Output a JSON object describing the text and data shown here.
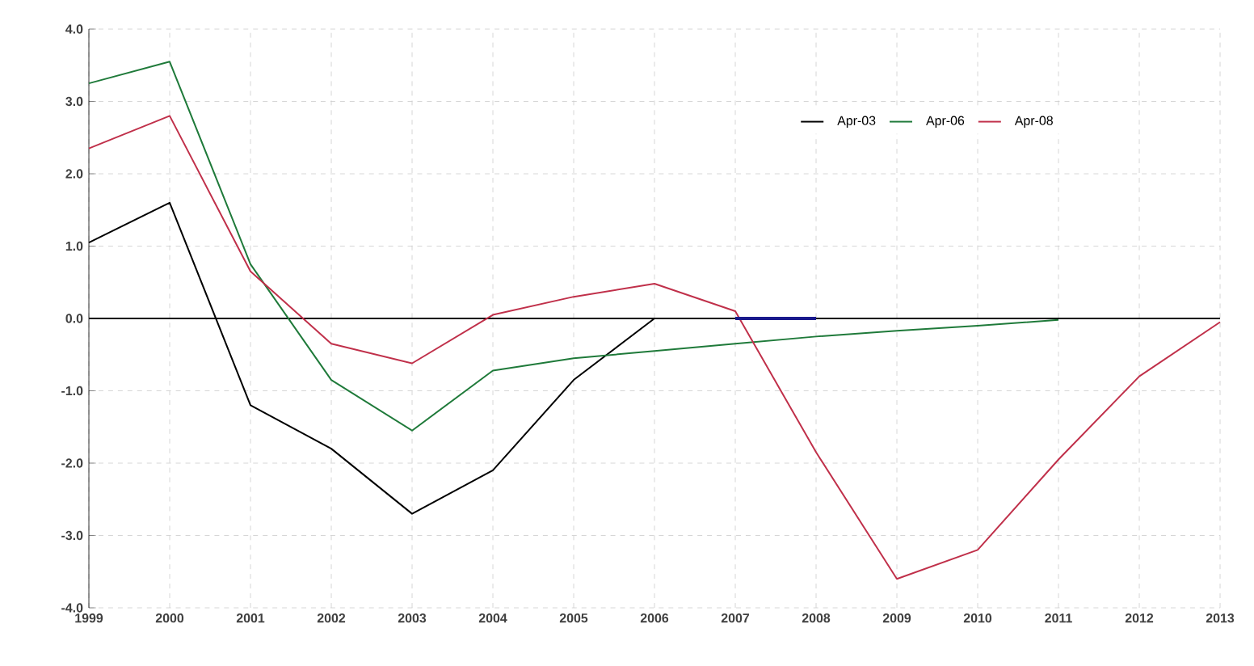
{
  "chart_data": {
    "type": "line",
    "categories": [
      "1999",
      "2000",
      "2001",
      "2002",
      "2003",
      "2004",
      "2005",
      "2006",
      "2007",
      "2008",
      "2009",
      "2010",
      "2011",
      "2012",
      "2013"
    ],
    "series": [
      {
        "name": "Apr-03",
        "color": "#000000",
        "values": [
          1.05,
          1.6,
          -1.2,
          -1.8,
          -2.7,
          -2.1,
          -0.85,
          0.0,
          null,
          null,
          null,
          null,
          null,
          null,
          null
        ]
      },
      {
        "name": "Apr-06",
        "color": "#1f7a3a",
        "values": [
          3.25,
          3.55,
          0.75,
          -0.85,
          -1.55,
          -0.72,
          -0.55,
          -0.45,
          -0.35,
          -0.25,
          -0.17,
          -0.1,
          -0.02,
          null,
          null
        ]
      },
      {
        "name": "Apr-08",
        "color": "#c0304a",
        "values": [
          2.35,
          2.8,
          0.65,
          -0.35,
          -0.62,
          0.05,
          0.3,
          0.48,
          0.1,
          -1.85,
          -3.6,
          -3.2,
          -1.95,
          -0.8,
          -0.05
        ]
      },
      {
        "color": "#1a1a8c",
        "values": [
          null,
          null,
          null,
          null,
          null,
          null,
          null,
          null,
          0.0,
          0.0,
          null,
          null,
          null,
          null,
          null
        ]
      }
    ],
    "ylim": [
      -4,
      4
    ],
    "yticks": [
      {
        "value": -4,
        "label": "-4.0"
      },
      {
        "value": -3,
        "label": "-3.0"
      },
      {
        "value": -2,
        "label": "-2.0"
      },
      {
        "value": -1,
        "label": "-1.0"
      },
      {
        "value": 0,
        "label": "0.0"
      },
      {
        "value": 1,
        "label": "1.0"
      },
      {
        "value": 2,
        "label": "2.0"
      },
      {
        "value": 3,
        "label": "3.0"
      },
      {
        "value": 4,
        "label": "4.0"
      }
    ],
    "ref_lines": [
      {
        "axis": "y",
        "value": 0,
        "color": "#000000"
      }
    ],
    "grid": true,
    "legend": "top right",
    "marker": "none",
    "line_style": "solid"
  }
}
